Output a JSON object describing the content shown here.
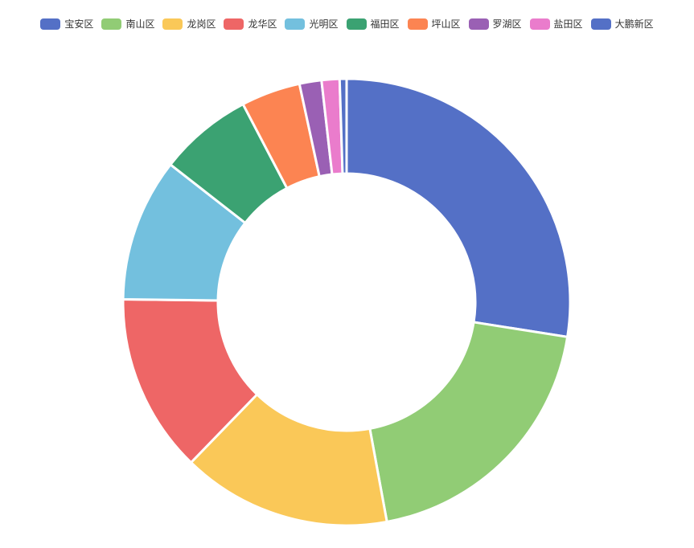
{
  "chart_data": {
    "type": "pie",
    "subtype": "donut",
    "legend_position": "top-center",
    "categories": [
      "宝安区",
      "南山区",
      "龙岗区",
      "龙华区",
      "光明区",
      "福田区",
      "坪山区",
      "罗湖区",
      "盐田区",
      "大鹏新区"
    ],
    "values": [
      27.6,
      19.7,
      15.2,
      13.0,
      10.4,
      6.8,
      4.3,
      1.6,
      1.3,
      0.5
    ],
    "colors": [
      "#5470c6",
      "#91cc75",
      "#fac858",
      "#ee6666",
      "#73c0de",
      "#3ba272",
      "#fc8452",
      "#9a60b4",
      "#ea7ccc",
      "#5470c6"
    ]
  }
}
